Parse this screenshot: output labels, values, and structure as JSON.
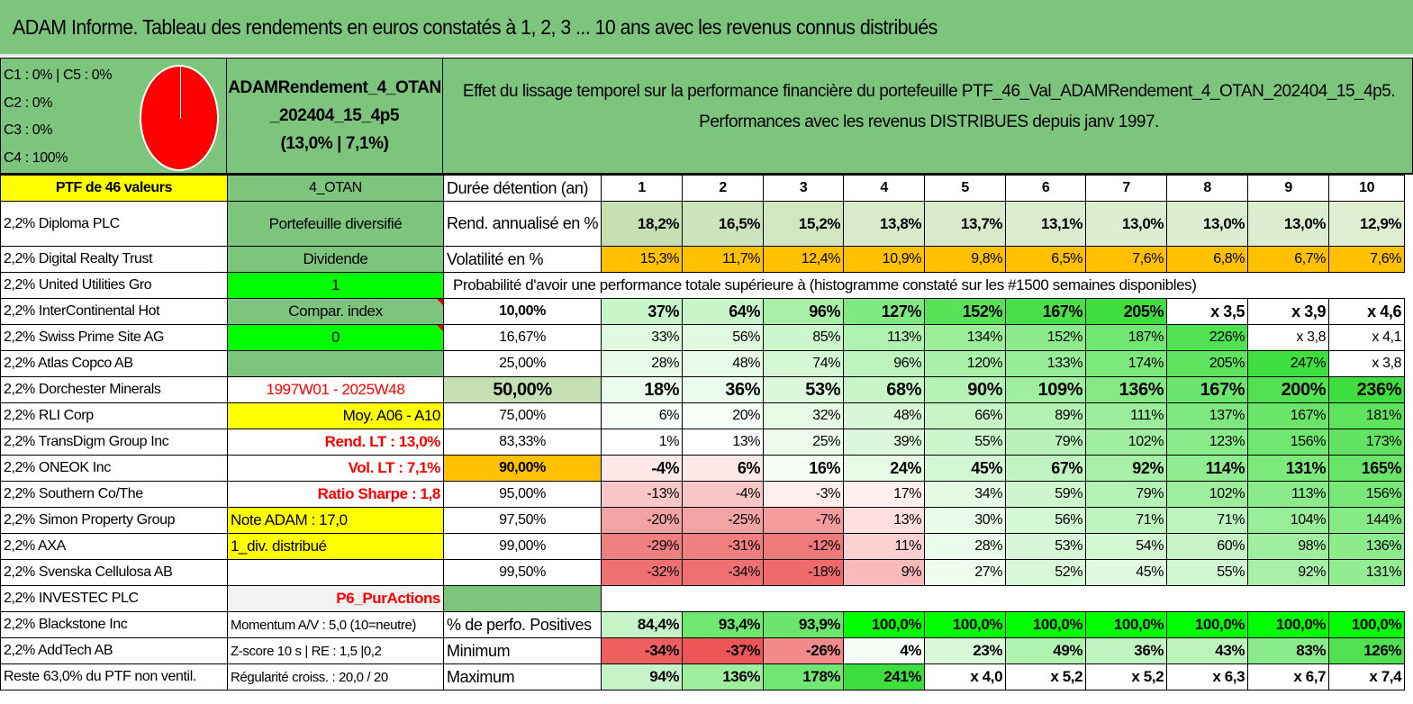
{
  "title": "ADAM Informe. Tableau des rendements en euros constatés à 1, 2, 3 ... 10 ans avec les revenus connus distribués",
  "allocation": [
    "C1 : 0% | C5 : 0%",
    "C2 : 0%",
    "C3 : 0%",
    "C4 : 100%"
  ],
  "portfolio_name": [
    "ADAMRendement_4_OTAN",
    "_202404_15_4p5",
    "(13,0% | 7,1%)"
  ],
  "description": [
    "Effet du lissage temporel sur la performance financière du portefeuille PTF_46_Val_ADAMRendement_4_OTAN_202404_15_4p5.",
    "Performances avec les revenus DISTRIBUES depuis janv 1997."
  ],
  "colors": {
    "header_green": "#7dc47d",
    "yellow": "#ffff00",
    "lime": "#00ff00",
    "orange": "#ffc000",
    "red_text": "#ff0000"
  },
  "ptf_header": "PTF de 46 valeurs",
  "holdings": [
    "2,2% Diploma PLC",
    "2,2% Digital Realty Trust",
    "2,2% United Utilities Gro",
    "2,2% InterContinental Hot",
    "2,2% Swiss Prime Site AG",
    "2,2% Atlas Copco AB",
    "2,2% Dorchester Minerals",
    "2,2% RLI Corp",
    "2,2% TransDigm Group Inc",
    "2,2% ONEOK Inc",
    "2,2% Southern Co/The",
    "2,2% Simon Property Group",
    "2,2% AXA",
    "2,2% Svenska Cellulosa AB",
    "2,2% INVESTEC PLC",
    "2,2% Blackstone Inc",
    "2,2% AddTech AB",
    "Reste 63,0% du PTF non ventil."
  ],
  "info_col": [
    "4_OTAN",
    "Portefeuille diversifié",
    "Dividende",
    "1",
    "Compar. index",
    "0",
    "",
    "1997W01 - 2025W48",
    "Moy. A06 - A10",
    "Rend. LT : 13,0%",
    "Vol. LT : 7,1%",
    "Ratio Sharpe : 1,8",
    "Note ADAM : 17,0",
    "1_div. distribué",
    "",
    "P6_PurActions",
    "Momentum A/V : 5,0 (10=neutre)",
    "Z-score 10 s | RE : 1,5 |0,2",
    "Régularité croiss. : 20,0 / 20"
  ],
  "labels": {
    "duree": "Durée détention (an)",
    "rend": "Rend. annualisé en %",
    "vol": "Volatilité en %",
    "prob": "Probabilité d'avoir une performance totale supérieure à (histogramme constaté sur les #1500 semaines disponibles)",
    "pos": "% de perfo. Positives",
    "min": "Minimum",
    "max": "Maximum"
  },
  "years": [
    "1",
    "2",
    "3",
    "4",
    "5",
    "6",
    "7",
    "8",
    "9",
    "10"
  ],
  "rendement": [
    "18,2%",
    "16,5%",
    "15,2%",
    "13,8%",
    "13,7%",
    "13,1%",
    "13,0%",
    "13,0%",
    "13,0%",
    "12,9%"
  ],
  "volatilite": [
    "15,3%",
    "11,7%",
    "12,4%",
    "10,9%",
    "9,8%",
    "6,5%",
    "7,6%",
    "6,8%",
    "6,7%",
    "7,6%"
  ],
  "probabilities": [
    {
      "p": "10,00%",
      "v": [
        "37%",
        "64%",
        "96%",
        "127%",
        "152%",
        "167%",
        "205%",
        "x 3,5",
        "x 3,9",
        "x 4,6"
      ]
    },
    {
      "p": "16,67%",
      "v": [
        "33%",
        "56%",
        "85%",
        "113%",
        "134%",
        "152%",
        "187%",
        "226%",
        "x 3,8",
        "x 4,1"
      ]
    },
    {
      "p": "25,00%",
      "v": [
        "28%",
        "48%",
        "74%",
        "96%",
        "120%",
        "133%",
        "174%",
        "205%",
        "247%",
        "x 3,8"
      ]
    },
    {
      "p": "50,00%",
      "v": [
        "18%",
        "36%",
        "53%",
        "68%",
        "90%",
        "109%",
        "136%",
        "167%",
        "200%",
        "236%"
      ]
    },
    {
      "p": "75,00%",
      "v": [
        "6%",
        "20%",
        "32%",
        "48%",
        "66%",
        "89%",
        "111%",
        "137%",
        "167%",
        "181%"
      ]
    },
    {
      "p": "83,33%",
      "v": [
        "1%",
        "13%",
        "25%",
        "39%",
        "55%",
        "79%",
        "102%",
        "123%",
        "156%",
        "173%"
      ]
    },
    {
      "p": "90,00%",
      "v": [
        "-4%",
        "6%",
        "16%",
        "24%",
        "45%",
        "67%",
        "92%",
        "114%",
        "131%",
        "165%"
      ]
    },
    {
      "p": "95,00%",
      "v": [
        "-13%",
        "-4%",
        "-3%",
        "17%",
        "34%",
        "59%",
        "79%",
        "102%",
        "113%",
        "156%"
      ]
    },
    {
      "p": "97,50%",
      "v": [
        "-20%",
        "-25%",
        "-7%",
        "13%",
        "30%",
        "56%",
        "71%",
        "71%",
        "104%",
        "144%"
      ]
    },
    {
      "p": "99,00%",
      "v": [
        "-29%",
        "-31%",
        "-12%",
        "11%",
        "28%",
        "53%",
        "54%",
        "60%",
        "98%",
        "136%"
      ]
    },
    {
      "p": "99,50%",
      "v": [
        "-32%",
        "-34%",
        "-18%",
        "9%",
        "27%",
        "52%",
        "45%",
        "55%",
        "92%",
        "131%"
      ]
    }
  ],
  "positives": [
    "84,4%",
    "93,4%",
    "93,9%",
    "100,0%",
    "100,0%",
    "100,0%",
    "100,0%",
    "100,0%",
    "100,0%",
    "100,0%"
  ],
  "minimum": [
    "-34%",
    "-37%",
    "-26%",
    "4%",
    "23%",
    "49%",
    "36%",
    "43%",
    "83%",
    "126%"
  ],
  "maximum": [
    "94%",
    "136%",
    "178%",
    "241%",
    "x 4,0",
    "x 5,2",
    "x 5,2",
    "x 6,3",
    "x 6,7",
    "x 7,4"
  ]
}
